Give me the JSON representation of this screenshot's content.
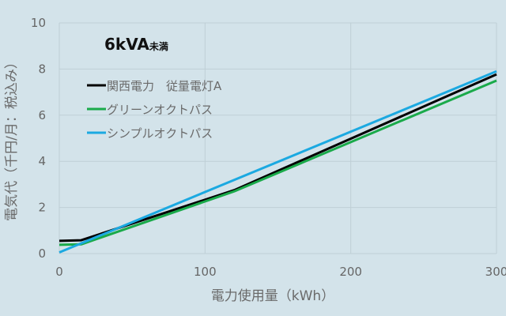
{
  "chart_data": {
    "type": "line",
    "title": "6kVA",
    "title_suffix": "未満",
    "xlabel": "電力使用量（kWh）",
    "ylabel": "電気代（千円/月：税込み）",
    "xlim": [
      0,
      300
    ],
    "ylim": [
      0,
      10
    ],
    "xticks": [
      0,
      100,
      200,
      300
    ],
    "yticks": [
      0,
      2,
      4,
      6,
      8,
      10
    ],
    "grid": true,
    "legend_position": "upper-left-inside",
    "series": [
      {
        "name": "関西電力　従量電灯A",
        "color": "#000000",
        "points": [
          [
            0,
            0.55
          ],
          [
            15,
            0.58
          ],
          [
            120,
            2.75
          ],
          [
            300,
            7.77
          ]
        ]
      },
      {
        "name": "グリーンオクトパス",
        "color": "#1aaa4a",
        "points": [
          [
            0,
            0.38
          ],
          [
            15,
            0.4
          ],
          [
            120,
            2.7
          ],
          [
            300,
            7.5
          ]
        ]
      },
      {
        "name": "シンプルオクトパス",
        "color": "#1ba9e1",
        "points": [
          [
            0,
            0.05
          ],
          [
            300,
            7.9
          ]
        ]
      }
    ]
  }
}
